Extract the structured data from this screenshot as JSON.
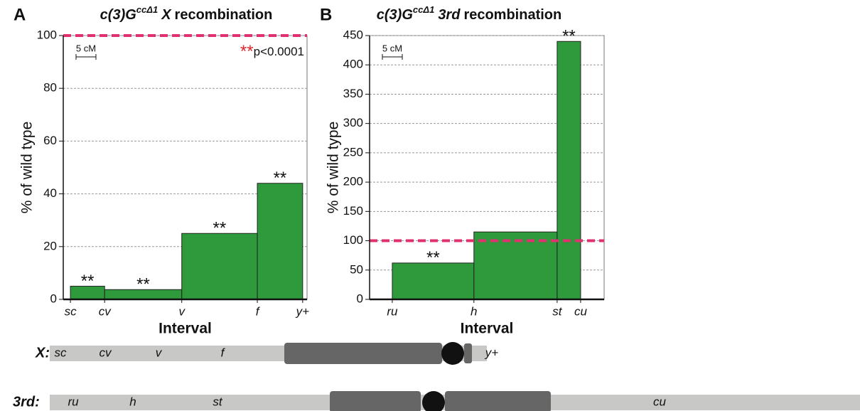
{
  "chart_data": [
    {
      "type": "histogram",
      "panel": "A",
      "title": {
        "gene": "c(3)G",
        "allele": "ccΔ1",
        "chromosome": "X",
        "rest": "recombination"
      },
      "ylabel": "% of wild type",
      "xlabel": "Interval",
      "bins": [
        0,
        8.6,
        28.0,
        47,
        58.4
      ],
      "values": [
        5,
        3.7,
        25,
        44
      ],
      "significance": [
        "**",
        "**",
        "**",
        "**"
      ],
      "color": "#2e9a3c",
      "xlim": [
        -1.8,
        59.5
      ],
      "xticks": [
        {
          "value": 0,
          "label": "sc"
        },
        {
          "value": 8.6,
          "label": "cv"
        },
        {
          "value": 28.0,
          "label": "v"
        },
        {
          "value": 47,
          "label": "f"
        },
        {
          "value": 58.4,
          "label": "y+"
        }
      ],
      "ylim": [
        0,
        100
      ],
      "yticks": [
        0,
        20,
        40,
        60,
        80,
        100
      ],
      "grid": true,
      "reference_line": {
        "value": 100,
        "color": "#e0306f"
      },
      "scale_bar": {
        "label": "5 cM",
        "length": 5
      },
      "legend_note": {
        "symbol": "**",
        "text": "p<0.0001"
      }
    },
    {
      "type": "histogram",
      "panel": "B",
      "title": {
        "gene": "c(3)G",
        "allele": "ccΔ1",
        "chromosome": "3rd",
        "rest": "recombination"
      },
      "ylabel": "% of wild type",
      "xlabel": "Interval",
      "bins": [
        0,
        20.5,
        41.4,
        47.3
      ],
      "values": [
        62,
        115,
        440
      ],
      "significance": [
        "**",
        null,
        "**"
      ],
      "color": "#2e9a3c",
      "xlim": [
        -5.7,
        53.2
      ],
      "xticks": [
        {
          "value": 0,
          "label": "ru"
        },
        {
          "value": 20.5,
          "label": "h"
        },
        {
          "value": 41.4,
          "label": "st"
        },
        {
          "value": 47.3,
          "label": "cu"
        }
      ],
      "ylim": [
        0,
        450
      ],
      "yticks": [
        0,
        50,
        100,
        150,
        200,
        250,
        300,
        350,
        400,
        450
      ],
      "grid": true,
      "reference_line": {
        "value": 100,
        "color": "#e0306f"
      },
      "scale_bar": {
        "label": "5 cM",
        "length": 5
      }
    }
  ],
  "chromosomes": [
    {
      "name": "X:",
      "markers": [
        "sc",
        "cv",
        "v",
        "f",
        "y+"
      ]
    },
    {
      "name": "3rd:",
      "markers": [
        "ru",
        "h",
        "st",
        "cu"
      ]
    }
  ]
}
